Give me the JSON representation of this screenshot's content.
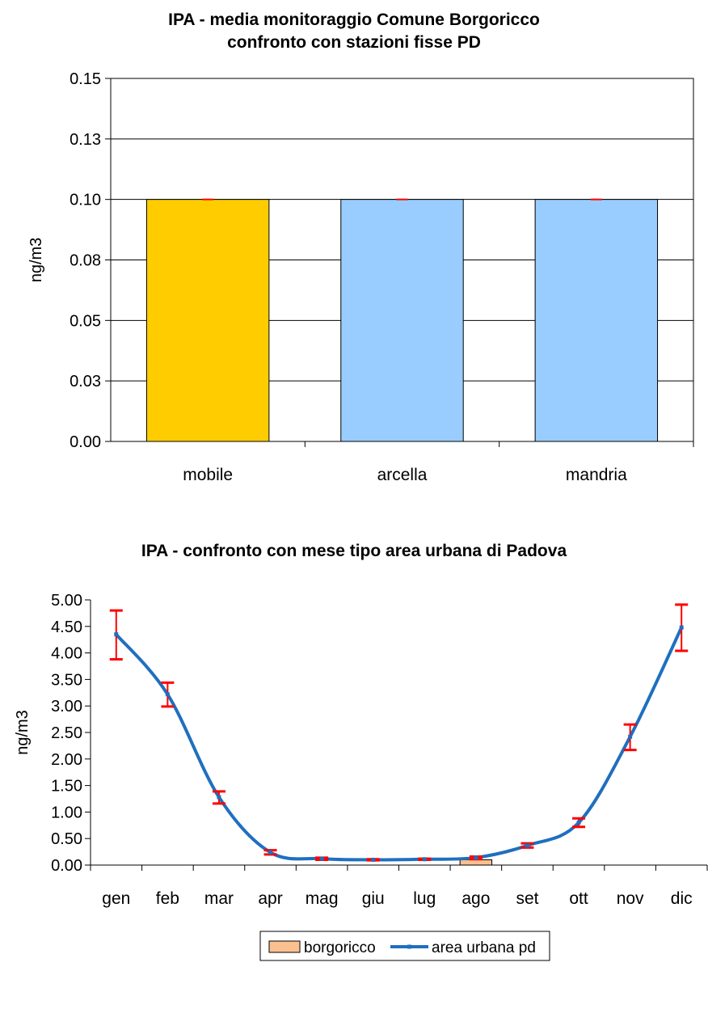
{
  "charts": [
    {
      "type": "bar",
      "title_line1": "IPA - media monitoraggio Comune Borgoricco",
      "title_line2": "confronto con stazioni fisse PD",
      "ylabel": "ng/m3",
      "ylim": [
        0,
        0.15
      ],
      "yticks": [
        "0.15",
        "0.13",
        "0.10",
        "0.08",
        "0.05",
        "0.03",
        "0.00"
      ],
      "grid": true,
      "categories": [
        "mobile",
        "arcella",
        "mandria"
      ],
      "values": [
        0.1,
        0.1,
        0.1
      ],
      "colors": [
        "#ffcc00",
        "#99ccff",
        "#99ccff"
      ],
      "error_bar_color": "#ff0000"
    },
    {
      "type": "line",
      "title": "IPA - confronto con mese tipo area urbana di Padova",
      "ylabel": "ng/m3",
      "ylim": [
        0,
        5
      ],
      "yticks": [
        "5.00",
        "4.50",
        "4.00",
        "3.50",
        "3.00",
        "2.50",
        "2.00",
        "1.50",
        "1.00",
        "0.50",
        "0.00"
      ],
      "grid": false,
      "legend_position": "bottom",
      "categories": [
        "gen",
        "feb",
        "mar",
        "apr",
        "mag",
        "giu",
        "lug",
        "ago",
        "set",
        "ott",
        "nov",
        "dic"
      ],
      "series": [
        {
          "name": "borgoricco",
          "kind": "bar",
          "color": "#fac090",
          "values": [
            null,
            null,
            null,
            null,
            null,
            null,
            null,
            0.1,
            null,
            null,
            null,
            null
          ]
        },
        {
          "name": "area urbana pd",
          "kind": "line",
          "color": "#1f6fbf",
          "values": [
            4.35,
            3.22,
            1.28,
            0.24,
            0.12,
            0.1,
            0.11,
            0.14,
            0.37,
            0.8,
            2.42,
            4.48
          ],
          "error_low": [
            3.88,
            2.99,
            1.16,
            0.2,
            0.1,
            0.09,
            0.1,
            0.11,
            0.33,
            0.72,
            2.17,
            4.04
          ],
          "error_high": [
            4.8,
            3.44,
            1.39,
            0.28,
            0.14,
            0.11,
            0.12,
            0.16,
            0.41,
            0.88,
            2.65,
            4.91
          ]
        }
      ],
      "error_bar_color": "#ff0000"
    }
  ]
}
